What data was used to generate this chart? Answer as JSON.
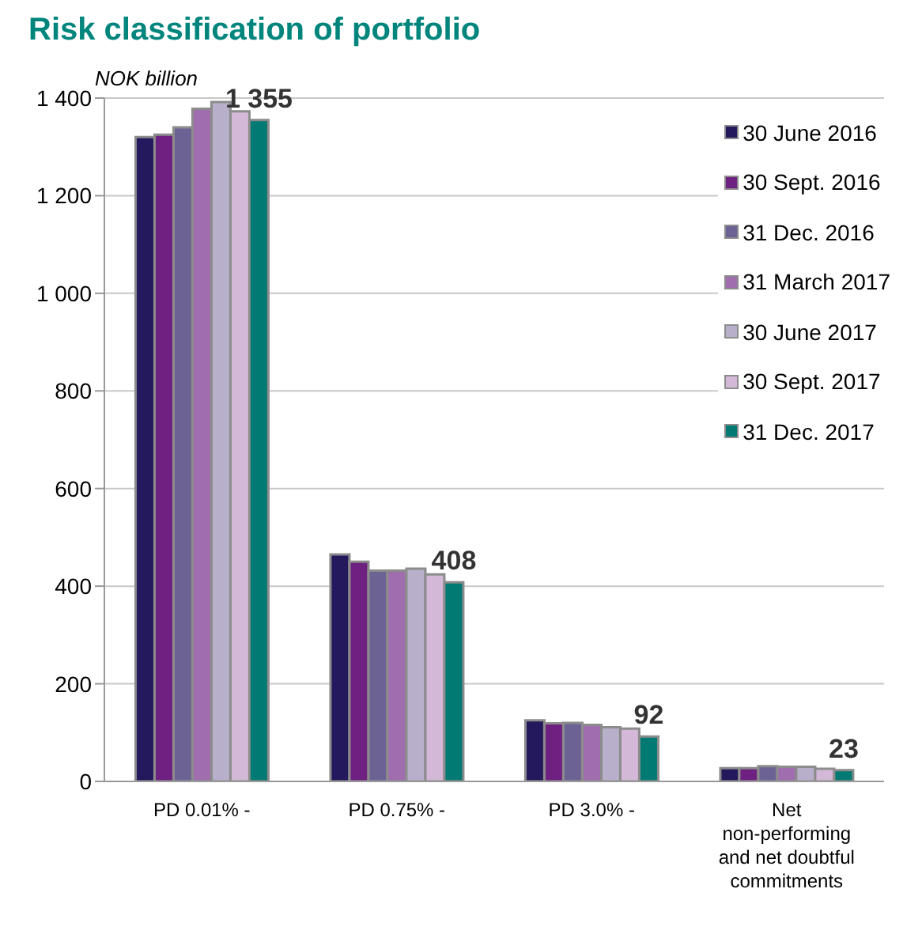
{
  "chart_data": {
    "type": "bar",
    "title": "Risk classification of portfolio",
    "ylabel": "NOK billion",
    "categories": [
      "PD 0.01% -",
      "PD 0.75% -",
      "PD 3.0% -",
      "Net non-performing and net doubtful commitments"
    ],
    "series": [
      {
        "name": "30 June 2016",
        "color": "#23195c",
        "values": [
          1320,
          465,
          125,
          27
        ]
      },
      {
        "name": "30 Sept. 2016",
        "color": "#6e2180",
        "values": [
          1325,
          450,
          119,
          27
        ]
      },
      {
        "name": "31 Dec. 2016",
        "color": "#6c6394",
        "values": [
          1340,
          432,
          120,
          31
        ]
      },
      {
        "name": "31 March 2017",
        "color": "#a06eaf",
        "values": [
          1378,
          432,
          116,
          30
        ]
      },
      {
        "name": "30 June 2017",
        "color": "#b8b0cb",
        "values": [
          1392,
          436,
          111,
          30
        ]
      },
      {
        "name": "30 Sept. 2017",
        "color": "#d3b8d8",
        "values": [
          1373,
          424,
          108,
          26
        ]
      },
      {
        "name": "31 Dec. 2017",
        "color": "#007a72",
        "values": [
          1355,
          408,
          92,
          23
        ],
        "value_labels": [
          "1 355",
          "408",
          "92",
          "23"
        ]
      }
    ],
    "ylim": [
      0,
      1400
    ],
    "yticks": [
      {
        "value": 0,
        "label": "0"
      },
      {
        "value": 200,
        "label": "200"
      },
      {
        "value": 400,
        "label": "400"
      },
      {
        "value": 600,
        "label": "600"
      },
      {
        "value": 800,
        "label": "800"
      },
      {
        "value": 1000,
        "label": "1 000"
      },
      {
        "value": 1200,
        "label": "1 200"
      },
      {
        "value": 1400,
        "label": "1 400"
      }
    ],
    "grid": "y",
    "legend": "top right"
  }
}
